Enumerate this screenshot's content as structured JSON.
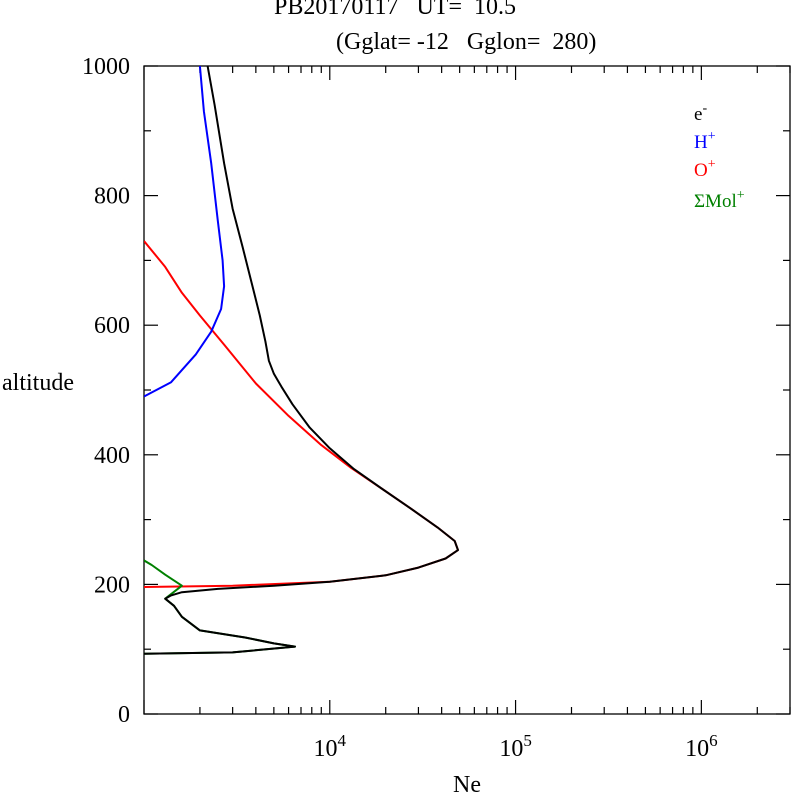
{
  "chart_data": {
    "type": "line",
    "title": "PB20170117   UT=  10.5",
    "subtitle": "(Gglat= -12   Gglon=  280)",
    "xlabel": "Ne",
    "ylabel": "altitude",
    "xscale": "log",
    "xlim": [
      1000,
      3000000
    ],
    "ylim": [
      0,
      1000
    ],
    "x_tick_labels": [
      {
        "value": 10000,
        "base": "10",
        "exp": "4"
      },
      {
        "value": 100000,
        "base": "10",
        "exp": "5"
      },
      {
        "value": 1000000,
        "base": "10",
        "exp": "6"
      }
    ],
    "y_ticks": [
      0,
      200,
      400,
      600,
      800,
      1000
    ],
    "y_tick_labels": [
      "0",
      "200",
      "400",
      "600",
      "800",
      "1000"
    ],
    "legend_position": "top-right",
    "grid": false,
    "series": [
      {
        "name": "e⁻",
        "label_base": "e",
        "label_sup": "-",
        "color": "#000000",
        "points": [
          [
            1000,
            93
          ],
          [
            3000,
            95
          ],
          [
            6500,
            104
          ],
          [
            5000,
            109
          ],
          [
            3500,
            118
          ],
          [
            2000,
            129
          ],
          [
            1600,
            150
          ],
          [
            1450,
            167
          ],
          [
            1300,
            178
          ],
          [
            1400,
            183
          ],
          [
            1600,
            188
          ],
          [
            2500,
            193
          ],
          [
            5000,
            198
          ],
          [
            10000,
            204
          ],
          [
            20000,
            214
          ],
          [
            30000,
            226
          ],
          [
            42000,
            240
          ],
          [
            49000,
            253
          ],
          [
            47000,
            267
          ],
          [
            38000,
            288
          ],
          [
            27000,
            318
          ],
          [
            19000,
            348
          ],
          [
            13500,
            378
          ],
          [
            10000,
            410
          ],
          [
            7800,
            442
          ],
          [
            6300,
            478
          ],
          [
            5500,
            505
          ],
          [
            5000,
            525
          ],
          [
            4700,
            545
          ],
          [
            4500,
            575
          ],
          [
            4200,
            615
          ],
          [
            3800,
            665
          ],
          [
            3400,
            720
          ],
          [
            3000,
            780
          ],
          [
            2700,
            850
          ],
          [
            2400,
            940
          ],
          [
            2200,
            1000
          ]
        ]
      },
      {
        "name": "H⁺",
        "label_base": "H",
        "label_sup": "+",
        "color": "#0000ff",
        "points": [
          [
            1000,
            490
          ],
          [
            1400,
            512
          ],
          [
            1900,
            555
          ],
          [
            2300,
            590
          ],
          [
            2600,
            625
          ],
          [
            2700,
            660
          ],
          [
            2650,
            700
          ],
          [
            2500,
            760
          ],
          [
            2300,
            850
          ],
          [
            2100,
            930
          ],
          [
            2000,
            1000
          ]
        ]
      },
      {
        "name": "O⁺",
        "label_base": "O",
        "label_sup": "+",
        "color": "#ff0000",
        "points": [
          [
            1000,
            196
          ],
          [
            3000,
            198
          ],
          [
            10000,
            204
          ],
          [
            20000,
            214
          ],
          [
            30000,
            226
          ],
          [
            42000,
            240
          ],
          [
            49000,
            253
          ],
          [
            47000,
            267
          ],
          [
            38000,
            288
          ],
          [
            27000,
            318
          ],
          [
            19000,
            348
          ],
          [
            13000,
            380
          ],
          [
            9000,
            415
          ],
          [
            6000,
            460
          ],
          [
            4000,
            510
          ],
          [
            2700,
            570
          ],
          [
            2000,
            615
          ],
          [
            1600,
            650
          ],
          [
            1300,
            690
          ],
          [
            1000,
            730
          ]
        ]
      },
      {
        "name": "ΣMol⁺",
        "label_base": "ΣMol",
        "label_sup": "+",
        "color": "#008000",
        "points": [
          [
            1000,
            93
          ],
          [
            3000,
            95
          ],
          [
            6500,
            104
          ],
          [
            5000,
            109
          ],
          [
            3500,
            118
          ],
          [
            2000,
            129
          ],
          [
            1600,
            150
          ],
          [
            1450,
            167
          ],
          [
            1300,
            178
          ],
          [
            1600,
            198
          ],
          [
            1300,
            215
          ],
          [
            1100,
            230
          ],
          [
            1000,
            237
          ]
        ]
      }
    ]
  }
}
